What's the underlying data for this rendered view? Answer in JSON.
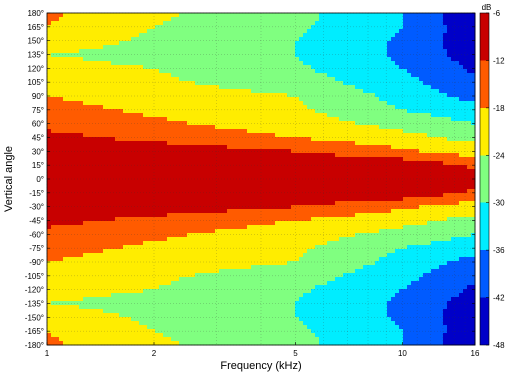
{
  "chart_data": {
    "type": "heatmap",
    "title": "",
    "xlabel": "Frequency (kHz)",
    "ylabel": "Vertical angle",
    "x_scale": "log",
    "xlim": [
      1,
      16
    ],
    "x_ticks": [
      1,
      2,
      5,
      10,
      16
    ],
    "x_tick_labels": [
      "1",
      "2",
      "5",
      "10",
      "16"
    ],
    "ylim": [
      -180,
      180
    ],
    "y_ticks": [
      180,
      165,
      150,
      135,
      120,
      105,
      90,
      75,
      60,
      45,
      30,
      15,
      0,
      -15,
      -30,
      -45,
      -60,
      -75,
      -90,
      -105,
      -120,
      -135,
      -150,
      -165,
      -180
    ],
    "y_tick_labels": [
      "180°",
      "165°",
      "150°",
      "135°",
      "120°",
      "105°",
      "90°",
      "75°",
      "60°",
      "45°",
      "30°",
      "15°",
      "0°",
      "-15°",
      "-30°",
      "-45°",
      "-60°",
      "-75°",
      "-90°",
      "-105°",
      "-120°",
      "-135°",
      "-150°",
      "-165°",
      "-180°"
    ],
    "grid": true,
    "colorbar": {
      "unit": "dB",
      "range": [
        -48,
        -6
      ],
      "ticks": [
        -6,
        -12,
        -18,
        -24,
        -30,
        -36,
        -42,
        -48
      ],
      "tick_labels": [
        "-6",
        "-12",
        "-18",
        "-24",
        "-30",
        "-36",
        "-42",
        "-48"
      ],
      "colormap": "jet"
    },
    "frequency_khz": [
      1,
      2,
      5,
      10,
      16
    ],
    "angles_deg": [
      0,
      15,
      30,
      45,
      60,
      75,
      90,
      105,
      120,
      135,
      150,
      165,
      180
    ],
    "level_db": [
      [
        -6,
        -6,
        -6,
        -6,
        -9
      ],
      [
        -6,
        -6,
        -6,
        -8,
        -13
      ],
      [
        -6,
        -8,
        -12,
        -17,
        -21
      ],
      [
        -10,
        -14,
        -18,
        -22,
        -26
      ],
      [
        -14,
        -17,
        -21,
        -26,
        -30
      ],
      [
        -16,
        -19,
        -23,
        -30,
        -34
      ],
      [
        -18,
        -21,
        -24,
        -32,
        -38
      ],
      [
        -20,
        -23,
        -27,
        -34,
        -41
      ],
      [
        -22,
        -24,
        -29,
        -36,
        -43
      ],
      [
        -24,
        -26,
        -30,
        -37,
        -45
      ],
      [
        -21,
        -25,
        -30,
        -37,
        -46
      ],
      [
        -18,
        -24,
        -29,
        -36,
        -46
      ],
      [
        -17,
        -23,
        -28,
        -36,
        -47
      ]
    ]
  }
}
